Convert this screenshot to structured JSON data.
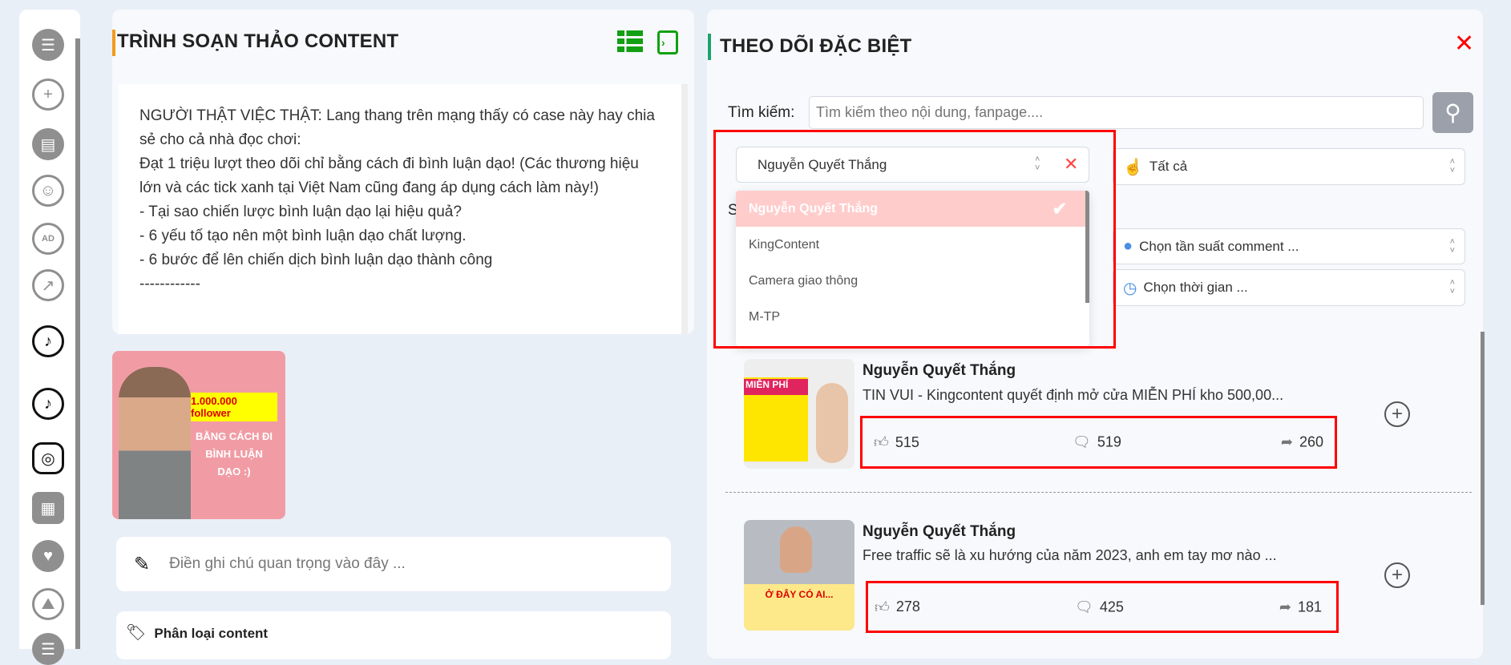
{
  "sidebar": {
    "icons": [
      "menu-icon",
      "plus-circle-icon",
      "document-icon",
      "smile-icon",
      "ad-icon",
      "trending-icon",
      "tiktok-icon",
      "tiktok-icon",
      "instagram-icon",
      "calendar-icon",
      "heart-icon",
      "image-icon",
      "more-icon"
    ]
  },
  "editor": {
    "title": "TRÌNH SOẠN THẢO CONTENT",
    "body": "NGƯỜI THẬT VIỆC THẬT: Lang thang trên mạng thấy có case này hay chia sẻ cho cả nhà đọc chơi:\nĐạt 1 triệu lượt theo dõi chỉ bằng cách đi bình luận dạo! (Các thương hiệu lớn và các tick xanh tại Việt Nam cũng đang áp dụng cách làm này!)\n- Tại sao chiến lược bình luận dạo lại hiệu quả?\n- 6 yếu tố tạo nên một bình luận dạo chất lượng.\n- 6 bước để lên chiến dịch bình luận dạo thành công\n------------",
    "image": {
      "headline": "1.000.000 follower",
      "sub": "BẰNG CÁCH ĐI BÌNH LUẬN DẠO :)"
    },
    "note_placeholder": "Điền ghi chú quan trọng vào đây ...",
    "category_label": "Phân loại content"
  },
  "tracker": {
    "title": "THEO DÕI ĐẶC BIỆT",
    "search_label": "Tìm kiếm:",
    "search_placeholder": "Tìm kiếm theo nội dung, fanpage....",
    "page_select": "Nguyễn Quyết Thắng",
    "page_options": [
      "Nguyễn Quyết Thắng",
      "KingContent",
      "Camera giao thông",
      "M-TP"
    ],
    "hidden_label": "S",
    "type_select": "Tất cả",
    "freq_select": "Chọn tần suất comment ...",
    "time_select": "Chọn thời gian ...",
    "posts": [
      {
        "author": "Nguyễn Quyết Thắng",
        "text": "TIN VUI - Kingcontent quyết định mở cửa MIỄN PHÍ kho 500,00...",
        "likes": "515",
        "comments": "519",
        "shares": "260",
        "thumb_label": "MIỄN PHÍ"
      },
      {
        "author": "Nguyễn Quyết Thắng",
        "text": "Free traffic sẽ là xu hướng của năm 2023, anh em tay mơ nào ...",
        "likes": "278",
        "comments": "425",
        "shares": "181",
        "thumb_label": "Ở ĐÂY CÓ AI..."
      }
    ]
  },
  "colors": {
    "accent_orange": "#f29b1d",
    "accent_green": "#1aa36f",
    "icon_green": "#12a012",
    "highlight": "#ff0000",
    "selected_option": "#ffcccc"
  }
}
